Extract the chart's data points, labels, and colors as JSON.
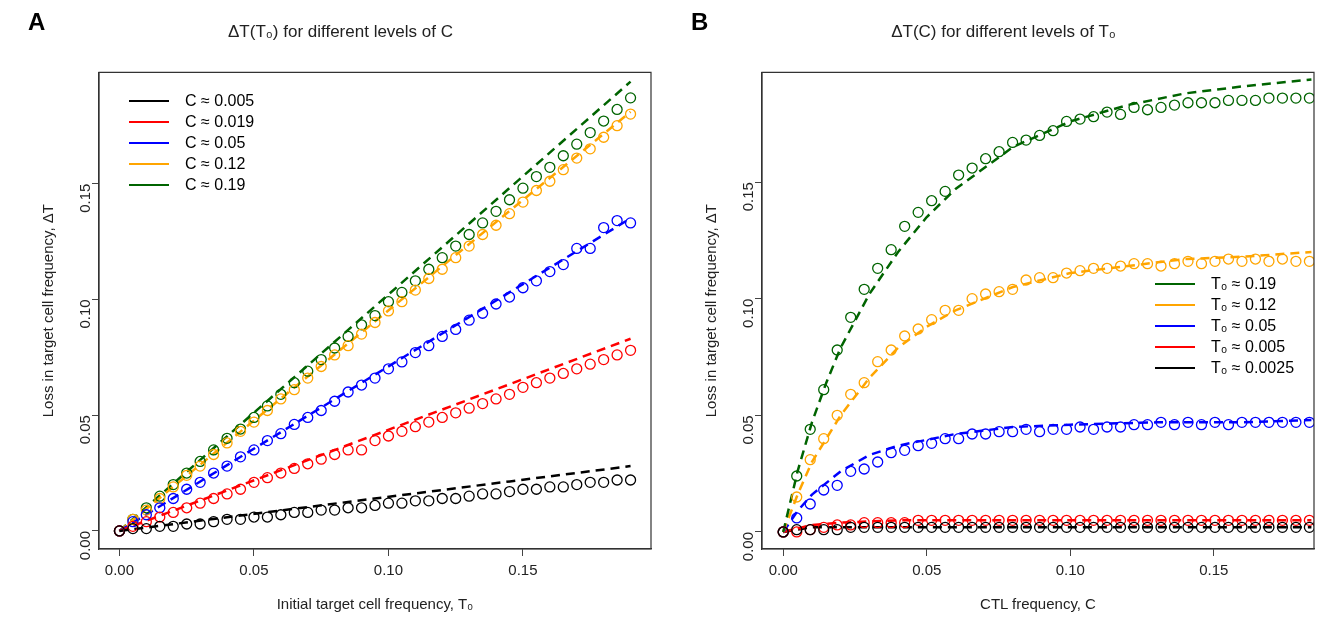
{
  "chart_data": [
    {
      "type": "scatter",
      "title": "ΔT(T₀) for different levels of C",
      "xlabel": "Initial target cell frequency, T₀",
      "ylabel": "Loss in target cell frequency, ΔT",
      "annotations": [
        "A"
      ],
      "x": [
        0,
        0.005,
        0.01,
        0.015,
        0.02,
        0.025,
        0.03,
        0.035,
        0.04,
        0.045,
        0.05,
        0.055,
        0.06,
        0.065,
        0.07,
        0.075,
        0.08,
        0.085,
        0.09,
        0.095,
        0.1,
        0.105,
        0.11,
        0.115,
        0.12,
        0.125,
        0.13,
        0.135,
        0.14,
        0.145,
        0.15,
        0.155,
        0.16,
        0.165,
        0.17,
        0.175,
        0.18,
        0.185,
        0.19
      ],
      "xlim": [
        -0.0076,
        0.1976
      ],
      "ylim": [
        -0.0078,
        0.198
      ],
      "xticks": [
        {
          "value": 0,
          "label": "0.00"
        },
        {
          "value": 0.05,
          "label": "0.05"
        },
        {
          "value": 0.1,
          "label": "0.10"
        },
        {
          "value": 0.15,
          "label": "0.15"
        }
      ],
      "yticks": [
        {
          "value": 0,
          "label": "0.00"
        },
        {
          "value": 0.05,
          "label": "0.05"
        },
        {
          "value": 0.1,
          "label": "0.10"
        },
        {
          "value": 0.15,
          "label": "0.15"
        }
      ],
      "legend": "top left",
      "series": [
        {
          "type": "scatter",
          "marker": "circle",
          "color": "#000000",
          "values": [
            0,
            0.001,
            0.001,
            0.002,
            0.002,
            0.003,
            0.003,
            0.004,
            0.005,
            0.005,
            0.006,
            0.006,
            0.007,
            0.008,
            0.008,
            0.009,
            0.009,
            0.01,
            0.01,
            0.011,
            0.012,
            0.012,
            0.013,
            0.013,
            0.014,
            0.014,
            0.015,
            0.016,
            0.016,
            0.017,
            0.018,
            0.018,
            0.019,
            0.019,
            0.02,
            0.021,
            0.021,
            0.022,
            0.022
          ]
        },
        {
          "type": "scatter",
          "marker": "circle",
          "color": "#ff0000",
          "values": [
            0,
            0.002,
            0.004,
            0.006,
            0.008,
            0.01,
            0.012,
            0.014,
            0.016,
            0.018,
            0.021,
            0.023,
            0.025,
            0.027,
            0.029,
            0.031,
            0.033,
            0.035,
            0.035,
            0.039,
            0.041,
            0.043,
            0.045,
            0.047,
            0.049,
            0.051,
            0.053,
            0.055,
            0.057,
            0.059,
            0.062,
            0.064,
            0.066,
            0.068,
            0.07,
            0.072,
            0.074,
            0.076,
            0.078
          ]
        },
        {
          "type": "scatter",
          "marker": "circle",
          "color": "#0000ff",
          "values": [
            0,
            0.004,
            0.007,
            0.01,
            0.014,
            0.018,
            0.021,
            0.025,
            0.028,
            0.032,
            0.035,
            0.039,
            0.042,
            0.046,
            0.049,
            0.052,
            0.056,
            0.06,
            0.063,
            0.066,
            0.07,
            0.073,
            0.077,
            0.08,
            0.084,
            0.087,
            0.091,
            0.094,
            0.098,
            0.101,
            0.105,
            0.108,
            0.112,
            0.115,
            0.122,
            0.122,
            0.131,
            0.134,
            0.133
          ]
        },
        {
          "type": "scatter",
          "marker": "circle",
          "color": "#ffa500",
          "values": [
            0,
            0.005,
            0.009,
            0.014,
            0.019,
            0.024,
            0.028,
            0.033,
            0.038,
            0.043,
            0.047,
            0.052,
            0.057,
            0.061,
            0.066,
            0.071,
            0.076,
            0.08,
            0.085,
            0.09,
            0.095,
            0.099,
            0.104,
            0.109,
            0.113,
            0.118,
            0.123,
            0.128,
            0.132,
            0.137,
            0.142,
            0.147,
            0.151,
            0.156,
            0.161,
            0.165,
            0.17,
            0.175,
            0.18
          ]
        },
        {
          "type": "scatter",
          "marker": "circle",
          "color": "#006400",
          "values": [
            0,
            0.005,
            0.01,
            0.015,
            0.02,
            0.025,
            0.03,
            0.035,
            0.04,
            0.044,
            0.049,
            0.054,
            0.059,
            0.064,
            0.069,
            0.074,
            0.079,
            0.084,
            0.089,
            0.093,
            0.099,
            0.103,
            0.108,
            0.113,
            0.118,
            0.123,
            0.128,
            0.133,
            0.138,
            0.143,
            0.148,
            0.153,
            0.157,
            0.162,
            0.167,
            0.172,
            0.177,
            0.182,
            0.187
          ]
        },
        {
          "type": "line",
          "marker": "none",
          "line_style": "dashed",
          "name": "C ≈ 0.005",
          "color": "#000000",
          "x": [
            0,
            0.19
          ],
          "values": [
            0,
            0.028
          ]
        },
        {
          "type": "line",
          "marker": "none",
          "line_style": "dashed",
          "name": "C ≈ 0.019",
          "color": "#ff0000",
          "x": [
            0,
            0.19
          ],
          "values": [
            0,
            0.083
          ]
        },
        {
          "type": "line",
          "marker": "none",
          "line_style": "dashed",
          "name": "C ≈ 0.05",
          "color": "#0000ff",
          "x": [
            0,
            0.19
          ],
          "values": [
            0,
            0.135
          ]
        },
        {
          "type": "line",
          "marker": "none",
          "line_style": "dashed",
          "name": "C ≈ 0.12",
          "color": "#ffa500",
          "x": [
            0,
            0.19
          ],
          "values": [
            0,
            0.181
          ]
        },
        {
          "type": "line",
          "marker": "none",
          "line_style": "dashed",
          "name": "C ≈ 0.19",
          "color": "#006400",
          "x": [
            0,
            0.19
          ],
          "values": [
            0,
            0.194
          ]
        }
      ]
    },
    {
      "type": "scatter",
      "title": "ΔT(C) for different levels of T₀",
      "xlabel": "CTL frequency, C",
      "ylabel": "Loss in target cell frequency, ΔT",
      "annotations": [
        "B"
      ],
      "x": [
        0,
        0.0047,
        0.0094,
        0.0141,
        0.0188,
        0.0235,
        0.0282,
        0.0329,
        0.0376,
        0.0423,
        0.047,
        0.0517,
        0.0564,
        0.0611,
        0.0658,
        0.0705,
        0.0752,
        0.0799,
        0.0846,
        0.0893,
        0.094,
        0.0987,
        0.1034,
        0.1081,
        0.1128,
        0.1175,
        0.1222,
        0.1269,
        0.1316,
        0.1363,
        0.141,
        0.1457,
        0.1504,
        0.1551,
        0.1598,
        0.1645,
        0.1692,
        0.1739,
        0.1786,
        0.1833
      ],
      "xlim": [
        -0.0074,
        0.1849
      ],
      "ylim": [
        -0.0073,
        0.197
      ],
      "xticks": [
        {
          "value": 0,
          "label": "0.00"
        },
        {
          "value": 0.05,
          "label": "0.05"
        },
        {
          "value": 0.1,
          "label": "0.10"
        },
        {
          "value": 0.15,
          "label": "0.15"
        }
      ],
      "yticks": [
        {
          "value": 0,
          "label": "0.00"
        },
        {
          "value": 0.05,
          "label": "0.05"
        },
        {
          "value": 0.1,
          "label": "0.10"
        },
        {
          "value": 0.15,
          "label": "0.15"
        }
      ],
      "legend": "right",
      "series": [
        {
          "type": "scatter",
          "marker": "circle",
          "color": "#000000",
          "values": [
            0,
            0.001,
            0.001,
            0.001,
            0.001,
            0.002,
            0.002,
            0.002,
            0.002,
            0.002,
            0.002,
            0.002,
            0.002,
            0.002,
            0.002,
            0.002,
            0.002,
            0.002,
            0.002,
            0.002,
            0.002,
            0.002,
            0.002,
            0.002,
            0.002,
            0.002,
            0.002,
            0.002,
            0.002,
            0.002,
            0.002,
            0.002,
            0.002,
            0.002,
            0.002,
            0.002,
            0.002,
            0.002,
            0.002,
            0.002
          ]
        },
        {
          "type": "scatter",
          "marker": "circle",
          "color": "#ff0000",
          "values": [
            0,
            0,
            0.001,
            0.002,
            0.003,
            0.003,
            0.004,
            0.004,
            0.004,
            0.004,
            0.005,
            0.005,
            0.005,
            0.005,
            0.005,
            0.005,
            0.005,
            0.005,
            0.005,
            0.005,
            0.005,
            0.005,
            0.005,
            0.005,
            0.005,
            0.005,
            0.005,
            0.005,
            0.005,
            0.005,
            0.005,
            0.005,
            0.005,
            0.005,
            0.005,
            0.005,
            0.005,
            0.005,
            0.005,
            0.005
          ]
        },
        {
          "type": "scatter",
          "marker": "circle",
          "color": "#0000ff",
          "values": [
            0,
            0.006,
            0.012,
            0.018,
            0.02,
            0.026,
            0.027,
            0.03,
            0.034,
            0.035,
            0.037,
            0.038,
            0.04,
            0.04,
            0.042,
            0.042,
            0.043,
            0.043,
            0.044,
            0.043,
            0.044,
            0.044,
            0.045,
            0.044,
            0.045,
            0.045,
            0.046,
            0.046,
            0.047,
            0.046,
            0.047,
            0.046,
            0.047,
            0.046,
            0.047,
            0.047,
            0.047,
            0.047,
            0.047,
            0.047
          ]
        },
        {
          "type": "scatter",
          "marker": "circle",
          "color": "#ffa500",
          "values": [
            0,
            0.015,
            0.031,
            0.04,
            0.05,
            0.059,
            0.064,
            0.073,
            0.078,
            0.084,
            0.087,
            0.091,
            0.095,
            0.095,
            0.1,
            0.102,
            0.103,
            0.104,
            0.108,
            0.109,
            0.109,
            0.111,
            0.112,
            0.113,
            0.113,
            0.114,
            0.115,
            0.115,
            0.114,
            0.115,
            0.116,
            0.115,
            0.116,
            0.117,
            0.116,
            0.117,
            0.116,
            0.117,
            0.116,
            0.116
          ]
        },
        {
          "type": "scatter",
          "marker": "circle",
          "color": "#006400",
          "values": [
            0,
            0.024,
            0.044,
            0.061,
            0.078,
            0.092,
            0.104,
            0.113,
            0.121,
            0.131,
            0.137,
            0.142,
            0.146,
            0.153,
            0.156,
            0.16,
            0.163,
            0.167,
            0.168,
            0.17,
            0.172,
            0.176,
            0.177,
            0.178,
            0.18,
            0.179,
            0.182,
            0.181,
            0.182,
            0.183,
            0.184,
            0.184,
            0.184,
            0.185,
            0.185,
            0.185,
            0.186,
            0.186,
            0.186,
            0.186
          ]
        },
        {
          "type": "line",
          "marker": "none",
          "line_style": "dashed",
          "name": "T₀ ≈ 0.19",
          "color": "#006400",
          "x": [
            0,
            0.005,
            0.01,
            0.015,
            0.02,
            0.03,
            0.04,
            0.05,
            0.06,
            0.08,
            0.1,
            0.12,
            0.14,
            0.16,
            0.184
          ],
          "values": [
            0,
            0.026,
            0.047,
            0.064,
            0.079,
            0.102,
            0.12,
            0.135,
            0.147,
            0.165,
            0.176,
            0.183,
            0.188,
            0.191,
            0.194
          ]
        },
        {
          "type": "line",
          "marker": "none",
          "line_style": "dashed",
          "name": "T₀ ≈ 0.12",
          "color": "#ffa500",
          "x": [
            0,
            0.005,
            0.01,
            0.02,
            0.03,
            0.04,
            0.05,
            0.06,
            0.08,
            0.1,
            0.12,
            0.14,
            0.16,
            0.184
          ],
          "values": [
            0,
            0.016,
            0.03,
            0.05,
            0.066,
            0.079,
            0.088,
            0.095,
            0.105,
            0.111,
            0.114,
            0.117,
            0.118,
            0.12
          ]
        },
        {
          "type": "line",
          "marker": "none",
          "line_style": "dashed",
          "name": "T₀ ≈ 0.05",
          "color": "#0000ff",
          "x": [
            0,
            0.005,
            0.01,
            0.02,
            0.03,
            0.04,
            0.06,
            0.08,
            0.1,
            0.13,
            0.16,
            0.184
          ],
          "values": [
            0,
            0.009,
            0.016,
            0.026,
            0.033,
            0.037,
            0.042,
            0.045,
            0.046,
            0.047,
            0.047,
            0.048
          ]
        },
        {
          "type": "line",
          "marker": "none",
          "line_style": "dashed",
          "name": "T₀ ≈ 0.005",
          "color": "#ff0000",
          "x": [
            0,
            0.01,
            0.02,
            0.04,
            0.184
          ],
          "values": [
            0,
            0.003,
            0.004,
            0.005,
            0.005
          ]
        },
        {
          "type": "line",
          "marker": "none",
          "line_style": "dashed",
          "name": "T₀ ≈ 0.0025",
          "color": "#000000",
          "x": [
            0,
            0.01,
            0.184
          ],
          "values": [
            0,
            0.002,
            0.002
          ]
        }
      ]
    }
  ]
}
